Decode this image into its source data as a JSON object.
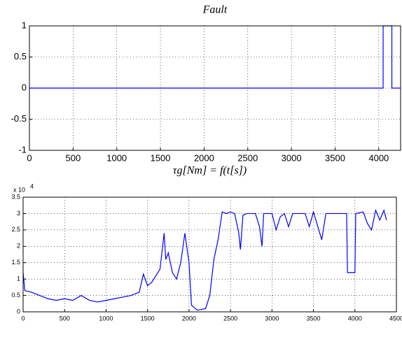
{
  "chart_data": [
    {
      "type": "line",
      "title": "Fault",
      "x": [
        0,
        4050,
        4050,
        4150,
        4150,
        4250
      ],
      "series": [
        {
          "color": "#0000ff",
          "values": [
            0,
            0,
            1,
            1,
            0,
            0
          ]
        }
      ],
      "xlim": [
        0,
        4250
      ],
      "xticks": [
        0,
        500,
        1000,
        1500,
        2000,
        2500,
        3000,
        3500,
        4000
      ],
      "ylim": [
        -1,
        1
      ],
      "yticks": [
        -1,
        -0.5,
        0,
        0.5,
        1
      ],
      "grid": true
    },
    {
      "type": "line",
      "title": "τg[Nm] = f(t[s])",
      "y_scale": {
        "base": "x 10",
        "exponent": "4"
      },
      "x": [
        0,
        20,
        100,
        200,
        300,
        400,
        500,
        600,
        700,
        800,
        900,
        1000,
        1100,
        1200,
        1300,
        1400,
        1450,
        1500,
        1550,
        1600,
        1650,
        1700,
        1720,
        1750,
        1800,
        1850,
        1900,
        1950,
        2000,
        2030,
        2100,
        2200,
        2250,
        2300,
        2350,
        2400,
        2450,
        2500,
        2550,
        2600,
        2620,
        2650,
        2700,
        2800,
        2850,
        2880,
        2900,
        3000,
        3050,
        3100,
        3150,
        3200,
        3250,
        3400,
        3450,
        3500,
        3600,
        3650,
        3800,
        3900,
        3910,
        4000,
        4010,
        4100,
        4150,
        4200,
        4250,
        4300,
        4350,
        4380
      ],
      "series": [
        {
          "color": "#0000ff",
          "values": [
            1.2,
            0.65,
            0.6,
            0.5,
            0.4,
            0.35,
            0.4,
            0.35,
            0.5,
            0.35,
            0.3,
            0.35,
            0.4,
            0.45,
            0.5,
            0.6,
            1.15,
            0.8,
            0.9,
            1.1,
            1.3,
            2.4,
            1.6,
            1.8,
            1.2,
            1.0,
            1.5,
            2.4,
            1.5,
            0.2,
            0.05,
            0.1,
            0.5,
            1.6,
            2.2,
            3.05,
            3.0,
            3.05,
            3.0,
            2.4,
            1.9,
            2.95,
            3.0,
            3.0,
            2.6,
            2.0,
            3.0,
            3.0,
            2.5,
            2.9,
            3.0,
            2.6,
            3.0,
            3.0,
            2.6,
            3.05,
            2.2,
            3.0,
            3.0,
            3.0,
            1.2,
            1.2,
            3.0,
            3.05,
            2.7,
            2.5,
            3.1,
            2.8,
            3.1,
            2.8
          ]
        }
      ],
      "xlim": [
        0,
        4500
      ],
      "xticks": [
        0,
        500,
        1000,
        1500,
        2000,
        2500,
        3000,
        3500,
        4000,
        4500
      ],
      "ylim": [
        0,
        3.5
      ],
      "yticks": [
        0,
        0.5,
        1,
        1.5,
        2,
        2.5,
        3,
        3.5
      ],
      "grid": true
    }
  ]
}
